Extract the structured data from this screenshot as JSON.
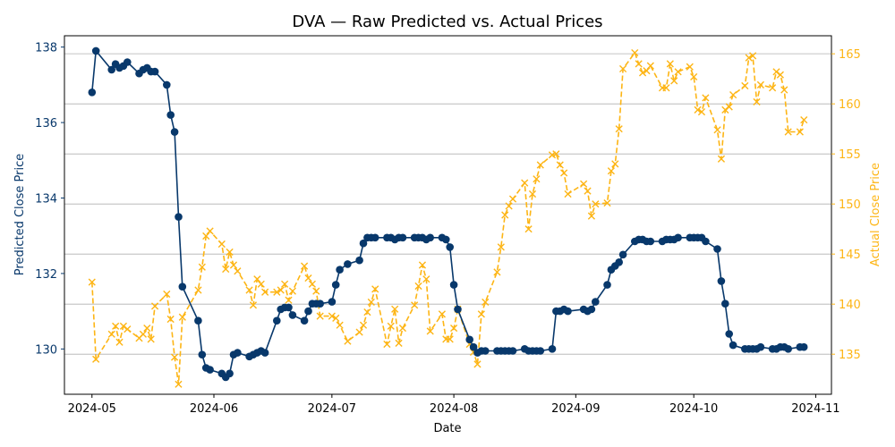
{
  "chart_data": {
    "type": "line",
    "title": "DVA — Raw Predicted vs. Actual Prices",
    "xlabel": "Date",
    "ylabel_left": "Predicted Close Price",
    "ylabel_right": "Actual Close Price",
    "xlim": [
      "2024-04-24",
      "2024-11-05"
    ],
    "ylim_left": [
      128.8,
      138.3
    ],
    "ylim_right": [
      131.0,
      166.8
    ],
    "x_ticks": [
      "2024-05",
      "2024-06",
      "2024-07",
      "2024-08",
      "2024-09",
      "2024-10",
      "2024-11"
    ],
    "y_ticks_left": [
      130,
      132,
      134,
      136,
      138
    ],
    "y_ticks_right": [
      135,
      140,
      145,
      150,
      155,
      160,
      165
    ],
    "grid": "horizontal, right axis",
    "colors": {
      "predicted": "#08386b",
      "actual": "#fdb515"
    },
    "series": [
      {
        "axis": "left",
        "style": "solid line, circle markers",
        "points": [
          [
            "2024-05-01",
            136.8
          ],
          [
            "2024-05-02",
            137.9
          ],
          [
            "2024-05-06",
            137.4
          ],
          [
            "2024-05-07",
            137.55
          ],
          [
            "2024-05-08",
            137.45
          ],
          [
            "2024-05-09",
            137.5
          ],
          [
            "2024-05-10",
            137.6
          ],
          [
            "2024-05-13",
            137.3
          ],
          [
            "2024-05-14",
            137.4
          ],
          [
            "2024-05-15",
            137.45
          ],
          [
            "2024-05-16",
            137.35
          ],
          [
            "2024-05-17",
            137.35
          ],
          [
            "2024-05-20",
            137.0
          ],
          [
            "2024-05-21",
            136.2
          ],
          [
            "2024-05-22",
            135.75
          ],
          [
            "2024-05-23",
            133.5
          ],
          [
            "2024-05-24",
            131.65
          ],
          [
            "2024-05-28",
            130.75
          ],
          [
            "2024-05-29",
            129.85
          ],
          [
            "2024-05-30",
            129.5
          ],
          [
            "2024-05-31",
            129.45
          ],
          [
            "2024-06-03",
            129.35
          ],
          [
            "2024-06-04",
            129.25
          ],
          [
            "2024-06-05",
            129.35
          ],
          [
            "2024-06-06",
            129.85
          ],
          [
            "2024-06-07",
            129.9
          ],
          [
            "2024-06-10",
            129.8
          ],
          [
            "2024-06-11",
            129.85
          ],
          [
            "2024-06-12",
            129.9
          ],
          [
            "2024-06-13",
            129.95
          ],
          [
            "2024-06-14",
            129.9
          ],
          [
            "2024-06-17",
            130.75
          ],
          [
            "2024-06-18",
            131.05
          ],
          [
            "2024-06-19",
            131.1
          ],
          [
            "2024-06-20",
            131.1
          ],
          [
            "2024-06-21",
            130.9
          ],
          [
            "2024-06-24",
            130.75
          ],
          [
            "2024-06-25",
            131.0
          ],
          [
            "2024-06-26",
            131.2
          ],
          [
            "2024-06-27",
            131.2
          ],
          [
            "2024-06-28",
            131.2
          ],
          [
            "2024-07-01",
            131.25
          ],
          [
            "2024-07-02",
            131.7
          ],
          [
            "2024-07-03",
            132.1
          ],
          [
            "2024-07-05",
            132.25
          ],
          [
            "2024-07-08",
            132.35
          ],
          [
            "2024-07-09",
            132.8
          ],
          [
            "2024-07-10",
            132.95
          ],
          [
            "2024-07-11",
            132.95
          ],
          [
            "2024-07-12",
            132.95
          ],
          [
            "2024-07-15",
            132.95
          ],
          [
            "2024-07-16",
            132.95
          ],
          [
            "2024-07-17",
            132.9
          ],
          [
            "2024-07-18",
            132.95
          ],
          [
            "2024-07-19",
            132.95
          ],
          [
            "2024-07-22",
            132.95
          ],
          [
            "2024-07-23",
            132.95
          ],
          [
            "2024-07-24",
            132.95
          ],
          [
            "2024-07-25",
            132.9
          ],
          [
            "2024-07-26",
            132.95
          ],
          [
            "2024-07-29",
            132.95
          ],
          [
            "2024-07-30",
            132.9
          ],
          [
            "2024-07-31",
            132.7
          ],
          [
            "2024-08-01",
            131.7
          ],
          [
            "2024-08-02",
            131.05
          ],
          [
            "2024-08-05",
            130.25
          ],
          [
            "2024-08-06",
            130.05
          ],
          [
            "2024-08-07",
            129.9
          ],
          [
            "2024-08-08",
            129.95
          ],
          [
            "2024-08-09",
            129.95
          ],
          [
            "2024-08-12",
            129.95
          ],
          [
            "2024-08-13",
            129.95
          ],
          [
            "2024-08-14",
            129.95
          ],
          [
            "2024-08-15",
            129.95
          ],
          [
            "2024-08-16",
            129.95
          ],
          [
            "2024-08-19",
            130.0
          ],
          [
            "2024-08-20",
            129.95
          ],
          [
            "2024-08-21",
            129.95
          ],
          [
            "2024-08-22",
            129.95
          ],
          [
            "2024-08-23",
            129.95
          ],
          [
            "2024-08-26",
            130.0
          ],
          [
            "2024-08-27",
            131.0
          ],
          [
            "2024-08-28",
            131.0
          ],
          [
            "2024-08-29",
            131.05
          ],
          [
            "2024-08-30",
            131.0
          ],
          [
            "2024-09-03",
            131.05
          ],
          [
            "2024-09-04",
            131.0
          ],
          [
            "2024-09-05",
            131.05
          ],
          [
            "2024-09-06",
            131.25
          ],
          [
            "2024-09-09",
            131.7
          ],
          [
            "2024-09-10",
            132.1
          ],
          [
            "2024-09-11",
            132.2
          ],
          [
            "2024-09-12",
            132.3
          ],
          [
            "2024-09-13",
            132.5
          ],
          [
            "2024-09-16",
            132.85
          ],
          [
            "2024-09-17",
            132.9
          ],
          [
            "2024-09-18",
            132.9
          ],
          [
            "2024-09-19",
            132.85
          ],
          [
            "2024-09-20",
            132.85
          ],
          [
            "2024-09-23",
            132.85
          ],
          [
            "2024-09-24",
            132.9
          ],
          [
            "2024-09-25",
            132.9
          ],
          [
            "2024-09-26",
            132.9
          ],
          [
            "2024-09-27",
            132.95
          ],
          [
            "2024-09-30",
            132.95
          ],
          [
            "2024-10-01",
            132.95
          ],
          [
            "2024-10-02",
            132.95
          ],
          [
            "2024-10-03",
            132.95
          ],
          [
            "2024-10-04",
            132.85
          ],
          [
            "2024-10-07",
            132.65
          ],
          [
            "2024-10-08",
            131.8
          ],
          [
            "2024-10-09",
            131.2
          ],
          [
            "2024-10-10",
            130.4
          ],
          [
            "2024-10-11",
            130.1
          ],
          [
            "2024-10-14",
            130.0
          ],
          [
            "2024-10-15",
            130.0
          ],
          [
            "2024-10-16",
            130.0
          ],
          [
            "2024-10-17",
            130.0
          ],
          [
            "2024-10-18",
            130.05
          ],
          [
            "2024-10-21",
            130.0
          ],
          [
            "2024-10-22",
            130.0
          ],
          [
            "2024-10-23",
            130.05
          ],
          [
            "2024-10-24",
            130.05
          ],
          [
            "2024-10-25",
            130.0
          ],
          [
            "2024-10-28",
            130.05
          ],
          [
            "2024-10-29",
            130.05
          ]
        ]
      },
      {
        "axis": "right",
        "style": "dashed line, x markers",
        "points": [
          [
            "2024-05-01",
            142.2
          ],
          [
            "2024-05-02",
            134.5
          ],
          [
            "2024-05-06",
            137.0
          ],
          [
            "2024-05-07",
            137.8
          ],
          [
            "2024-05-08",
            136.2
          ],
          [
            "2024-05-09",
            137.8
          ],
          [
            "2024-05-10",
            137.5
          ],
          [
            "2024-05-13",
            136.6
          ],
          [
            "2024-05-14",
            137.0
          ],
          [
            "2024-05-15",
            137.6
          ],
          [
            "2024-05-16",
            136.5
          ],
          [
            "2024-05-17",
            139.8
          ],
          [
            "2024-05-20",
            141.0
          ],
          [
            "2024-05-21",
            138.5
          ],
          [
            "2024-05-22",
            134.7
          ],
          [
            "2024-05-23",
            132.0
          ],
          [
            "2024-05-24",
            138.7
          ],
          [
            "2024-05-28",
            141.4
          ],
          [
            "2024-05-29",
            143.7
          ],
          [
            "2024-05-30",
            146.8
          ],
          [
            "2024-05-31",
            147.3
          ],
          [
            "2024-06-03",
            146.0
          ],
          [
            "2024-06-04",
            143.5
          ],
          [
            "2024-06-05",
            145.2
          ],
          [
            "2024-06-06",
            143.9
          ],
          [
            "2024-06-07",
            143.3
          ],
          [
            "2024-06-10",
            141.4
          ],
          [
            "2024-06-11",
            139.9
          ],
          [
            "2024-06-12",
            142.5
          ],
          [
            "2024-06-13",
            142.0
          ],
          [
            "2024-06-14",
            141.2
          ],
          [
            "2024-06-17",
            141.2
          ],
          [
            "2024-06-18",
            141.4
          ],
          [
            "2024-06-19",
            142.0
          ],
          [
            "2024-06-20",
            140.4
          ],
          [
            "2024-06-21",
            141.3
          ],
          [
            "2024-06-24",
            143.8
          ],
          [
            "2024-06-25",
            142.6
          ],
          [
            "2024-06-26",
            142.0
          ],
          [
            "2024-06-27",
            141.3
          ],
          [
            "2024-06-28",
            138.8
          ],
          [
            "2024-07-01",
            138.8
          ],
          [
            "2024-07-02",
            138.6
          ],
          [
            "2024-07-03",
            137.9
          ],
          [
            "2024-07-05",
            136.3
          ],
          [
            "2024-07-08",
            137.2
          ],
          [
            "2024-07-09",
            137.9
          ],
          [
            "2024-07-10",
            139.2
          ],
          [
            "2024-07-11",
            140.2
          ],
          [
            "2024-07-12",
            141.5
          ],
          [
            "2024-07-15",
            136.0
          ],
          [
            "2024-07-16",
            137.8
          ],
          [
            "2024-07-17",
            139.5
          ],
          [
            "2024-07-18",
            136.1
          ],
          [
            "2024-07-19",
            137.6
          ],
          [
            "2024-07-22",
            139.9
          ],
          [
            "2024-07-23",
            141.8
          ],
          [
            "2024-07-24",
            143.9
          ],
          [
            "2024-07-25",
            142.5
          ],
          [
            "2024-07-26",
            137.3
          ],
          [
            "2024-07-29",
            139.0
          ],
          [
            "2024-07-30",
            136.5
          ],
          [
            "2024-07-31",
            136.5
          ],
          [
            "2024-08-01",
            137.6
          ],
          [
            "2024-08-02",
            139.5
          ],
          [
            "2024-08-05",
            136.0
          ],
          [
            "2024-08-06",
            135.2
          ],
          [
            "2024-08-07",
            134.0
          ],
          [
            "2024-08-08",
            139.0
          ],
          [
            "2024-08-09",
            140.2
          ],
          [
            "2024-08-12",
            143.2
          ],
          [
            "2024-08-13",
            145.7
          ],
          [
            "2024-08-14",
            148.9
          ],
          [
            "2024-08-15",
            149.8
          ],
          [
            "2024-08-16",
            150.5
          ],
          [
            "2024-08-19",
            152.1
          ],
          [
            "2024-08-20",
            147.5
          ],
          [
            "2024-08-21",
            151.0
          ],
          [
            "2024-08-22",
            152.5
          ],
          [
            "2024-08-23",
            153.9
          ],
          [
            "2024-08-26",
            154.9
          ],
          [
            "2024-08-27",
            155.0
          ],
          [
            "2024-08-28",
            153.9
          ],
          [
            "2024-08-29",
            153.1
          ],
          [
            "2024-08-30",
            151.0
          ],
          [
            "2024-09-03",
            152.0
          ],
          [
            "2024-09-04",
            151.3
          ],
          [
            "2024-09-05",
            148.8
          ],
          [
            "2024-09-06",
            150.0
          ],
          [
            "2024-09-09",
            150.1
          ],
          [
            "2024-09-10",
            153.3
          ],
          [
            "2024-09-11",
            154.0
          ],
          [
            "2024-09-12",
            157.5
          ],
          [
            "2024-09-13",
            163.5
          ],
          [
            "2024-09-16",
            165.1
          ],
          [
            "2024-09-17",
            164.0
          ],
          [
            "2024-09-18",
            163.1
          ],
          [
            "2024-09-19",
            163.3
          ],
          [
            "2024-09-20",
            163.8
          ],
          [
            "2024-09-23",
            161.6
          ],
          [
            "2024-09-24",
            161.6
          ],
          [
            "2024-09-25",
            164.0
          ],
          [
            "2024-09-26",
            162.3
          ],
          [
            "2024-09-27",
            163.2
          ],
          [
            "2024-09-30",
            163.7
          ],
          [
            "2024-10-01",
            162.7
          ],
          [
            "2024-10-02",
            159.4
          ],
          [
            "2024-10-03",
            159.2
          ],
          [
            "2024-10-04",
            160.6
          ],
          [
            "2024-10-07",
            157.4
          ],
          [
            "2024-10-08",
            154.5
          ],
          [
            "2024-10-09",
            159.4
          ],
          [
            "2024-10-10",
            159.7
          ],
          [
            "2024-10-11",
            160.9
          ],
          [
            "2024-10-14",
            161.8
          ],
          [
            "2024-10-15",
            164.6
          ],
          [
            "2024-10-16",
            164.8
          ],
          [
            "2024-10-17",
            160.2
          ],
          [
            "2024-10-18",
            161.9
          ],
          [
            "2024-10-21",
            161.6
          ],
          [
            "2024-10-22",
            163.2
          ],
          [
            "2024-10-23",
            162.9
          ],
          [
            "2024-10-24",
            161.4
          ],
          [
            "2024-10-25",
            157.2
          ],
          [
            "2024-10-28",
            157.2
          ],
          [
            "2024-10-29",
            158.4
          ]
        ]
      }
    ]
  }
}
